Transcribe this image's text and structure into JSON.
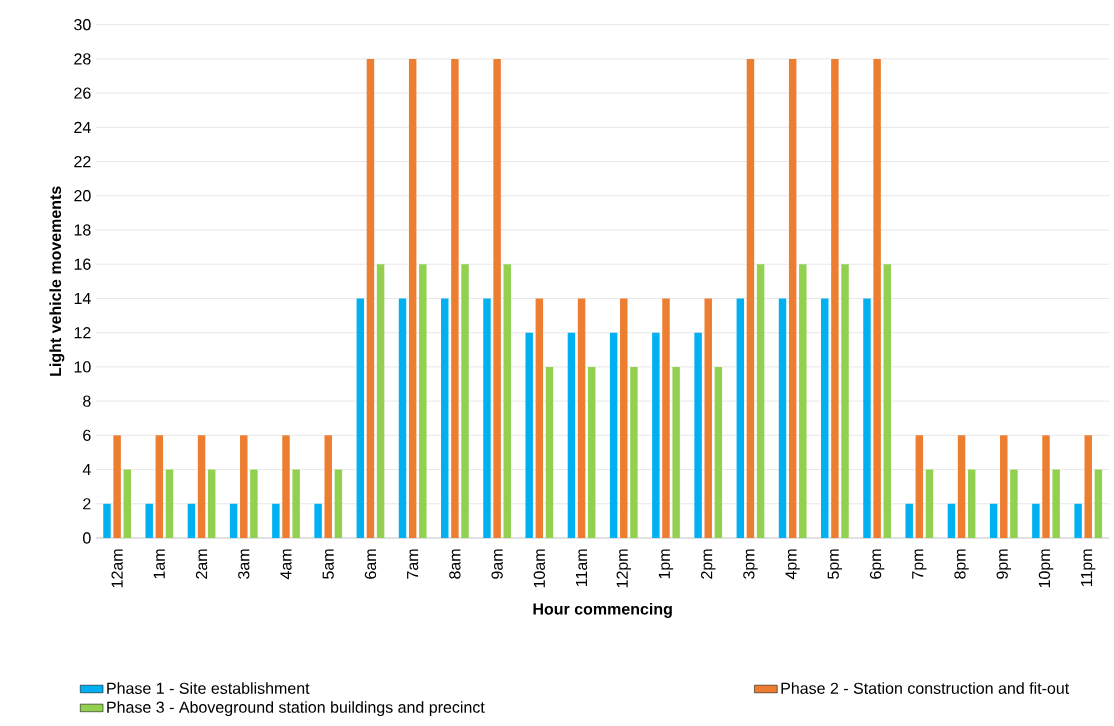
{
  "chart_data": {
    "type": "bar",
    "xlabel": "Hour commencing",
    "ylabel": "Light vehicle movements",
    "categories": [
      "12am",
      "1am",
      "2am",
      "3am",
      "4am",
      "5am",
      "6am",
      "7am",
      "8am",
      "9am",
      "10am",
      "11am",
      "12pm",
      "1pm",
      "2pm",
      "3pm",
      "4pm",
      "5pm",
      "6pm",
      "7pm",
      "8pm",
      "9pm",
      "10pm",
      "11pm"
    ],
    "series": [
      {
        "name": "Phase 1 - Site establishment",
        "color": "#00b0f0",
        "values": [
          2,
          2,
          2,
          2,
          2,
          2,
          14,
          14,
          14,
          14,
          12,
          12,
          12,
          12,
          12,
          14,
          14,
          14,
          14,
          2,
          2,
          2,
          2,
          2
        ]
      },
      {
        "name": "Phase 2 - Station construction and fit-out",
        "color": "#ed7d31",
        "values": [
          6,
          6,
          6,
          6,
          6,
          6,
          28,
          28,
          28,
          28,
          14,
          14,
          14,
          14,
          14,
          28,
          28,
          28,
          28,
          6,
          6,
          6,
          6,
          6
        ]
      },
      {
        "name": "Phase 3 - Aboveground station buildings and precinct",
        "color": "#92d050",
        "values": [
          4,
          4,
          4,
          4,
          4,
          4,
          16,
          16,
          16,
          16,
          10,
          10,
          10,
          10,
          10,
          16,
          16,
          16,
          16,
          4,
          4,
          4,
          4,
          4
        ]
      }
    ],
    "ylim": [
      0,
      30
    ],
    "yticks": [
      0,
      2,
      4,
      6,
      8,
      10,
      12,
      14,
      16,
      18,
      20,
      22,
      24,
      26,
      28,
      30
    ],
    "grid": "y",
    "legend": "bottom"
  }
}
